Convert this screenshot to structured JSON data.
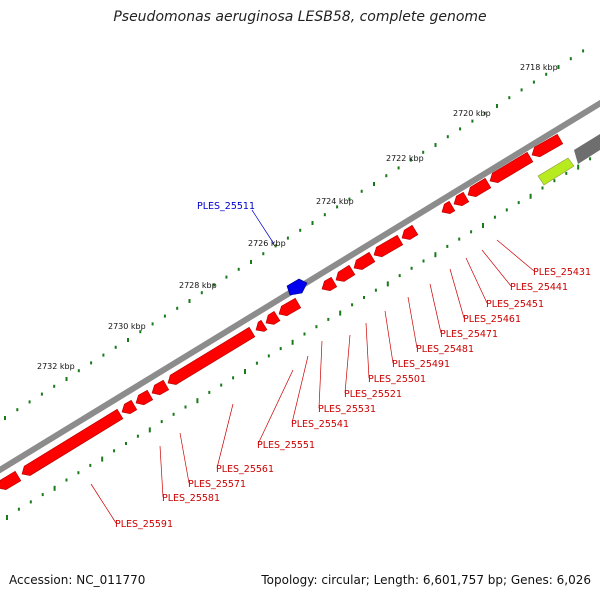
{
  "title": "Pseudomonas aeruginosa LESB58, complete genome",
  "footer": {
    "accession": "Accession: NC_011770",
    "summary": "Topology: circular; Length: 6,601,757 bp; Genes: 6,026"
  },
  "colors": {
    "forward_gene": "#ff0000",
    "reverse_gene": "#ff0000",
    "highlight_gene": "#0000ee",
    "backbone": "#8c8c8c",
    "ticks": "#1a7a1a",
    "labels_reverse": "#cc0000",
    "labels_forward": "#0000cc"
  },
  "tick_labels": [
    "2718 kbp",
    "2720 kbp",
    "2722 kbp",
    "2724 kbp",
    "2726 kbp",
    "2728 kbp",
    "2730 kbp",
    "2732 kbp"
  ],
  "genes_forward": [
    {
      "label": "PLES_25511",
      "color": "blue"
    }
  ],
  "genes_reverse": [
    {
      "label": "PLES_25431"
    },
    {
      "label": "PLES_25441"
    },
    {
      "label": "PLES_25451"
    },
    {
      "label": "PLES_25461"
    },
    {
      "label": "PLES_25471"
    },
    {
      "label": "PLES_25481"
    },
    {
      "label": "PLES_25491"
    },
    {
      "label": "PLES_25501"
    },
    {
      "label": "PLES_25521"
    },
    {
      "label": "PLES_25531"
    },
    {
      "label": "PLES_25541"
    },
    {
      "label": "PLES_25551"
    },
    {
      "label": "PLES_25561"
    },
    {
      "label": "PLES_25571"
    },
    {
      "label": "PLES_25581"
    },
    {
      "label": "PLES_25591"
    }
  ]
}
